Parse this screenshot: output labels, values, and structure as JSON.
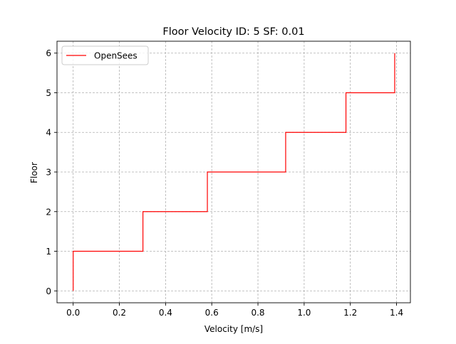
{
  "chart_data": {
    "type": "line",
    "title": "Floor Velocity ID: 5  SF: 0.01",
    "xlabel": "Velocity [m/s]",
    "ylabel": "Floor",
    "xlim": [
      -0.07,
      1.46
    ],
    "ylim": [
      -0.3,
      6.3
    ],
    "xticks": [
      0.0,
      0.2,
      0.4,
      0.6,
      0.8,
      1.0,
      1.2,
      1.4
    ],
    "xtick_labels": [
      "0.0",
      "0.2",
      "0.4",
      "0.6",
      "0.8",
      "1.0",
      "1.2",
      "1.4"
    ],
    "yticks": [
      0,
      1,
      2,
      3,
      4,
      5,
      6
    ],
    "ytick_labels": [
      "0",
      "1",
      "2",
      "3",
      "4",
      "5",
      "6"
    ],
    "grid": true,
    "legend_position": "upper-left",
    "series": [
      {
        "name": "OpenSees",
        "color": "#ff0000",
        "step": true,
        "x": [
          0.0,
          0.0,
          0.302,
          0.302,
          0.581,
          0.581,
          0.92,
          0.92,
          1.181,
          1.181,
          1.392,
          1.392
        ],
        "y": [
          0,
          1,
          1,
          2,
          2,
          3,
          3,
          4,
          4,
          5,
          5,
          6
        ]
      }
    ]
  }
}
